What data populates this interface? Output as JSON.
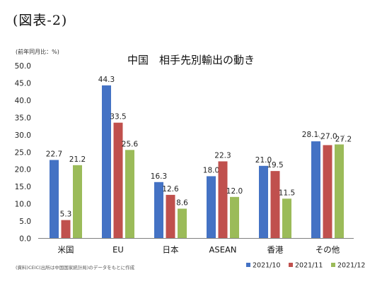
{
  "figure_label": "(図表-2)",
  "source_note": "(資料)CEIC(出所は中国国家統計局)のデータをもとに作成",
  "chart_data": {
    "type": "bar",
    "title": "中国　相手先別輸出の動き",
    "unit_label": "(前年同月比：%)",
    "categories": [
      "米国",
      "EU",
      "日本",
      "ASEAN",
      "香港",
      "その他"
    ],
    "series": [
      {
        "name": "2021/10",
        "color": "#4472c4",
        "values": [
          22.7,
          44.3,
          16.3,
          18.0,
          21.0,
          28.1
        ]
      },
      {
        "name": "2021/11",
        "color": "#c0504d",
        "values": [
          5.3,
          33.5,
          12.6,
          22.3,
          19.5,
          27.0
        ]
      },
      {
        "name": "2021/12",
        "color": "#9bbb59",
        "values": [
          21.2,
          25.6,
          8.6,
          12.0,
          11.5,
          27.2
        ]
      }
    ],
    "ylim": [
      0,
      50
    ],
    "yticks": [
      "0.0",
      "5.0",
      "10.0",
      "15.0",
      "20.0",
      "25.0",
      "30.0",
      "35.0",
      "40.0",
      "45.0",
      "50.0"
    ],
    "ystep": 5,
    "grid": false,
    "legend": "bottom-right"
  }
}
